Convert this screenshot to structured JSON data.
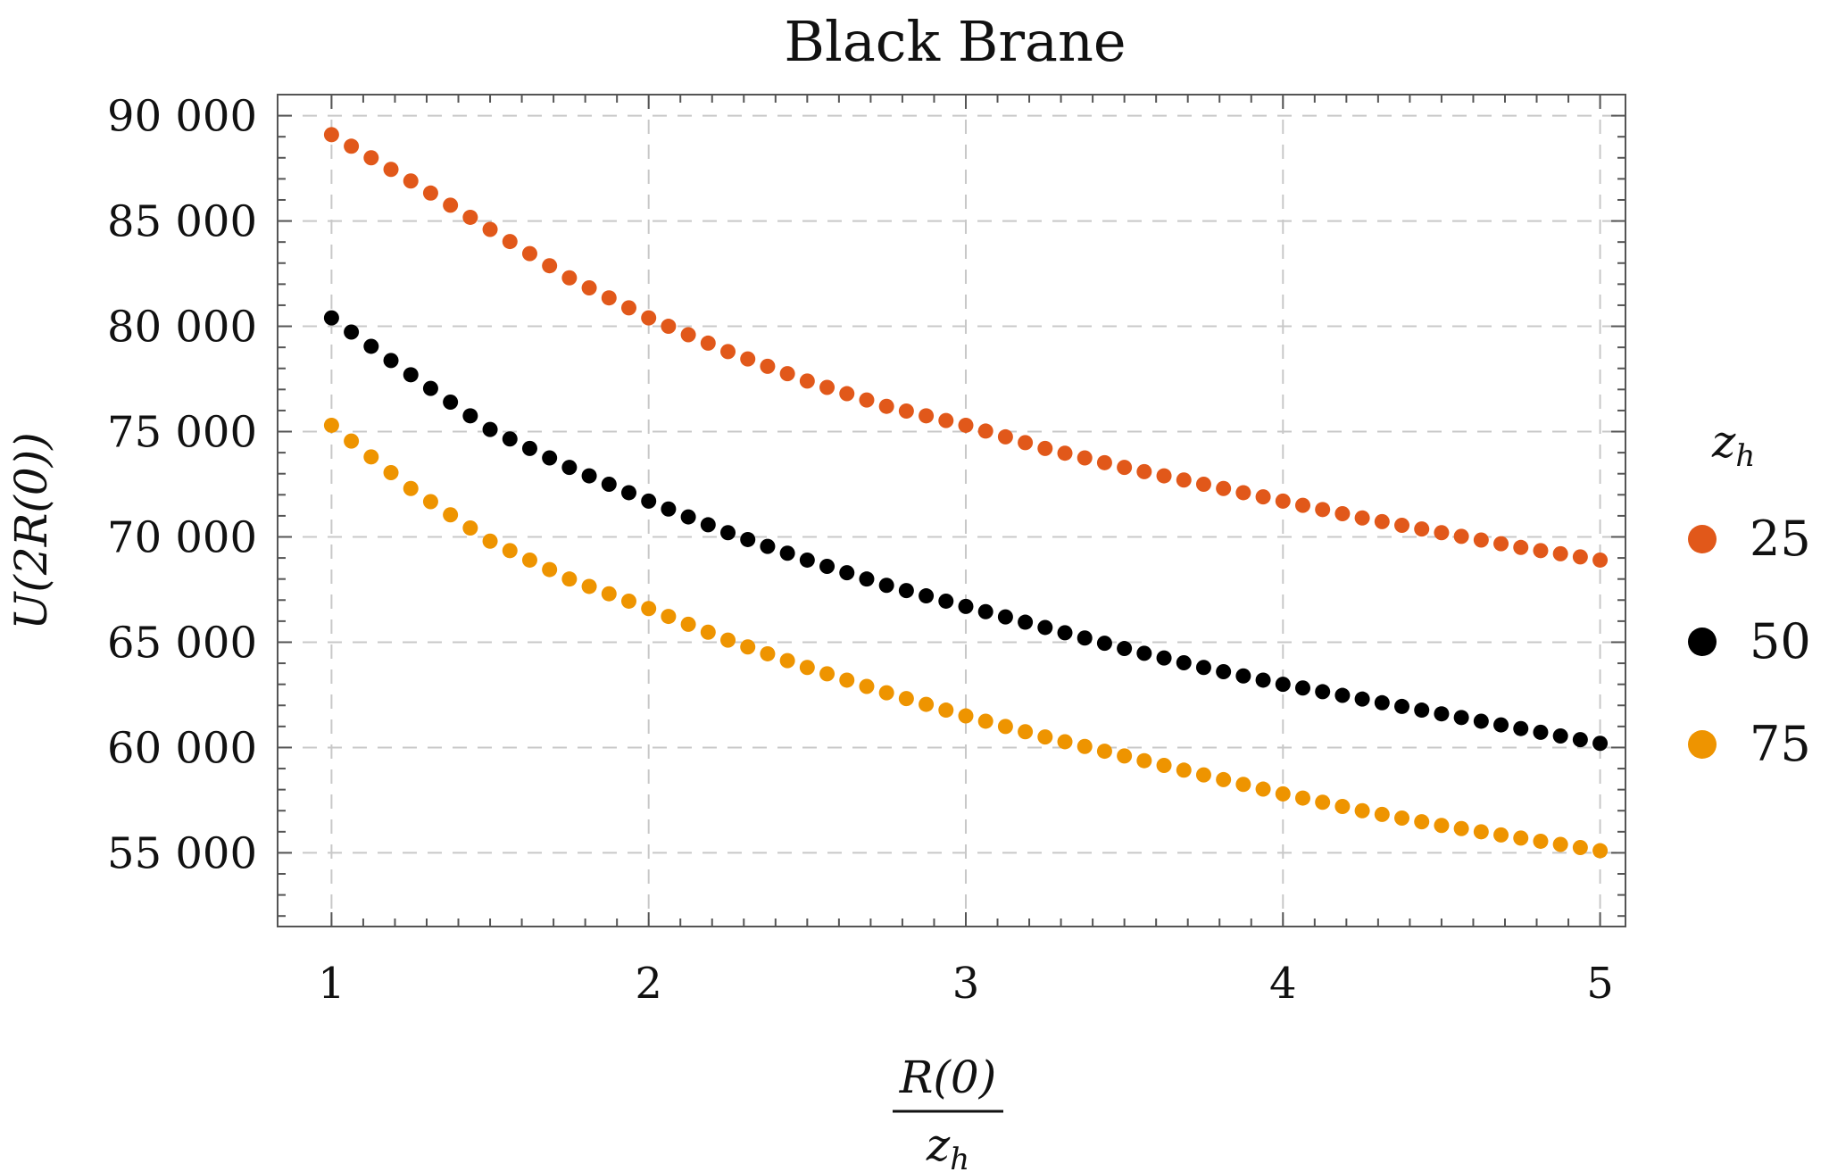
{
  "chart_data": {
    "type": "scatter",
    "title": "Black Brane",
    "ylabel": "U(2R(0))",
    "xlabel_numerator": "R(0)",
    "xlabel_denominator_base": "z",
    "xlabel_denominator_sub": "h",
    "xlim": [
      0.83,
      5.08
    ],
    "ylim": [
      51500,
      91000
    ],
    "x_ticks": [
      1,
      2,
      3,
      4,
      5
    ],
    "x_tick_labels": [
      "1",
      "2",
      "3",
      "4",
      "5"
    ],
    "y_ticks": [
      55000,
      60000,
      65000,
      70000,
      75000,
      80000,
      85000,
      90000
    ],
    "y_tick_labels": [
      "55 000",
      "60 000",
      "65 000",
      "70 000",
      "75 000",
      "80 000",
      "85 000",
      "90 000"
    ],
    "grid": true,
    "legend_title_base": "z",
    "legend_title_sub": "h",
    "legend_position": "right",
    "x": [
      1.0,
      1.25,
      1.5,
      1.75,
      2.0,
      2.25,
      2.5,
      2.75,
      3.0,
      3.25,
      3.5,
      3.75,
      4.0,
      4.25,
      4.5,
      4.75,
      5.0
    ],
    "series": [
      {
        "name": "25",
        "color": "#E1581A",
        "values": [
          89100,
          86900,
          84600,
          82300,
          80400,
          78800,
          77400,
          76200,
          75300,
          74200,
          73300,
          72500,
          71700,
          70900,
          70200,
          69500,
          68900
        ]
      },
      {
        "name": "50",
        "color": "#000000",
        "values": [
          80400,
          77700,
          75100,
          73300,
          71700,
          70200,
          68900,
          67700,
          66700,
          65700,
          64700,
          63800,
          63000,
          62300,
          61600,
          60900,
          60200
        ]
      },
      {
        "name": "75",
        "color": "#EE9400",
        "values": [
          75300,
          72300,
          69800,
          68000,
          66600,
          65100,
          63800,
          62600,
          61500,
          60500,
          59600,
          58700,
          57800,
          57000,
          56300,
          55700,
          55100
        ]
      }
    ]
  }
}
